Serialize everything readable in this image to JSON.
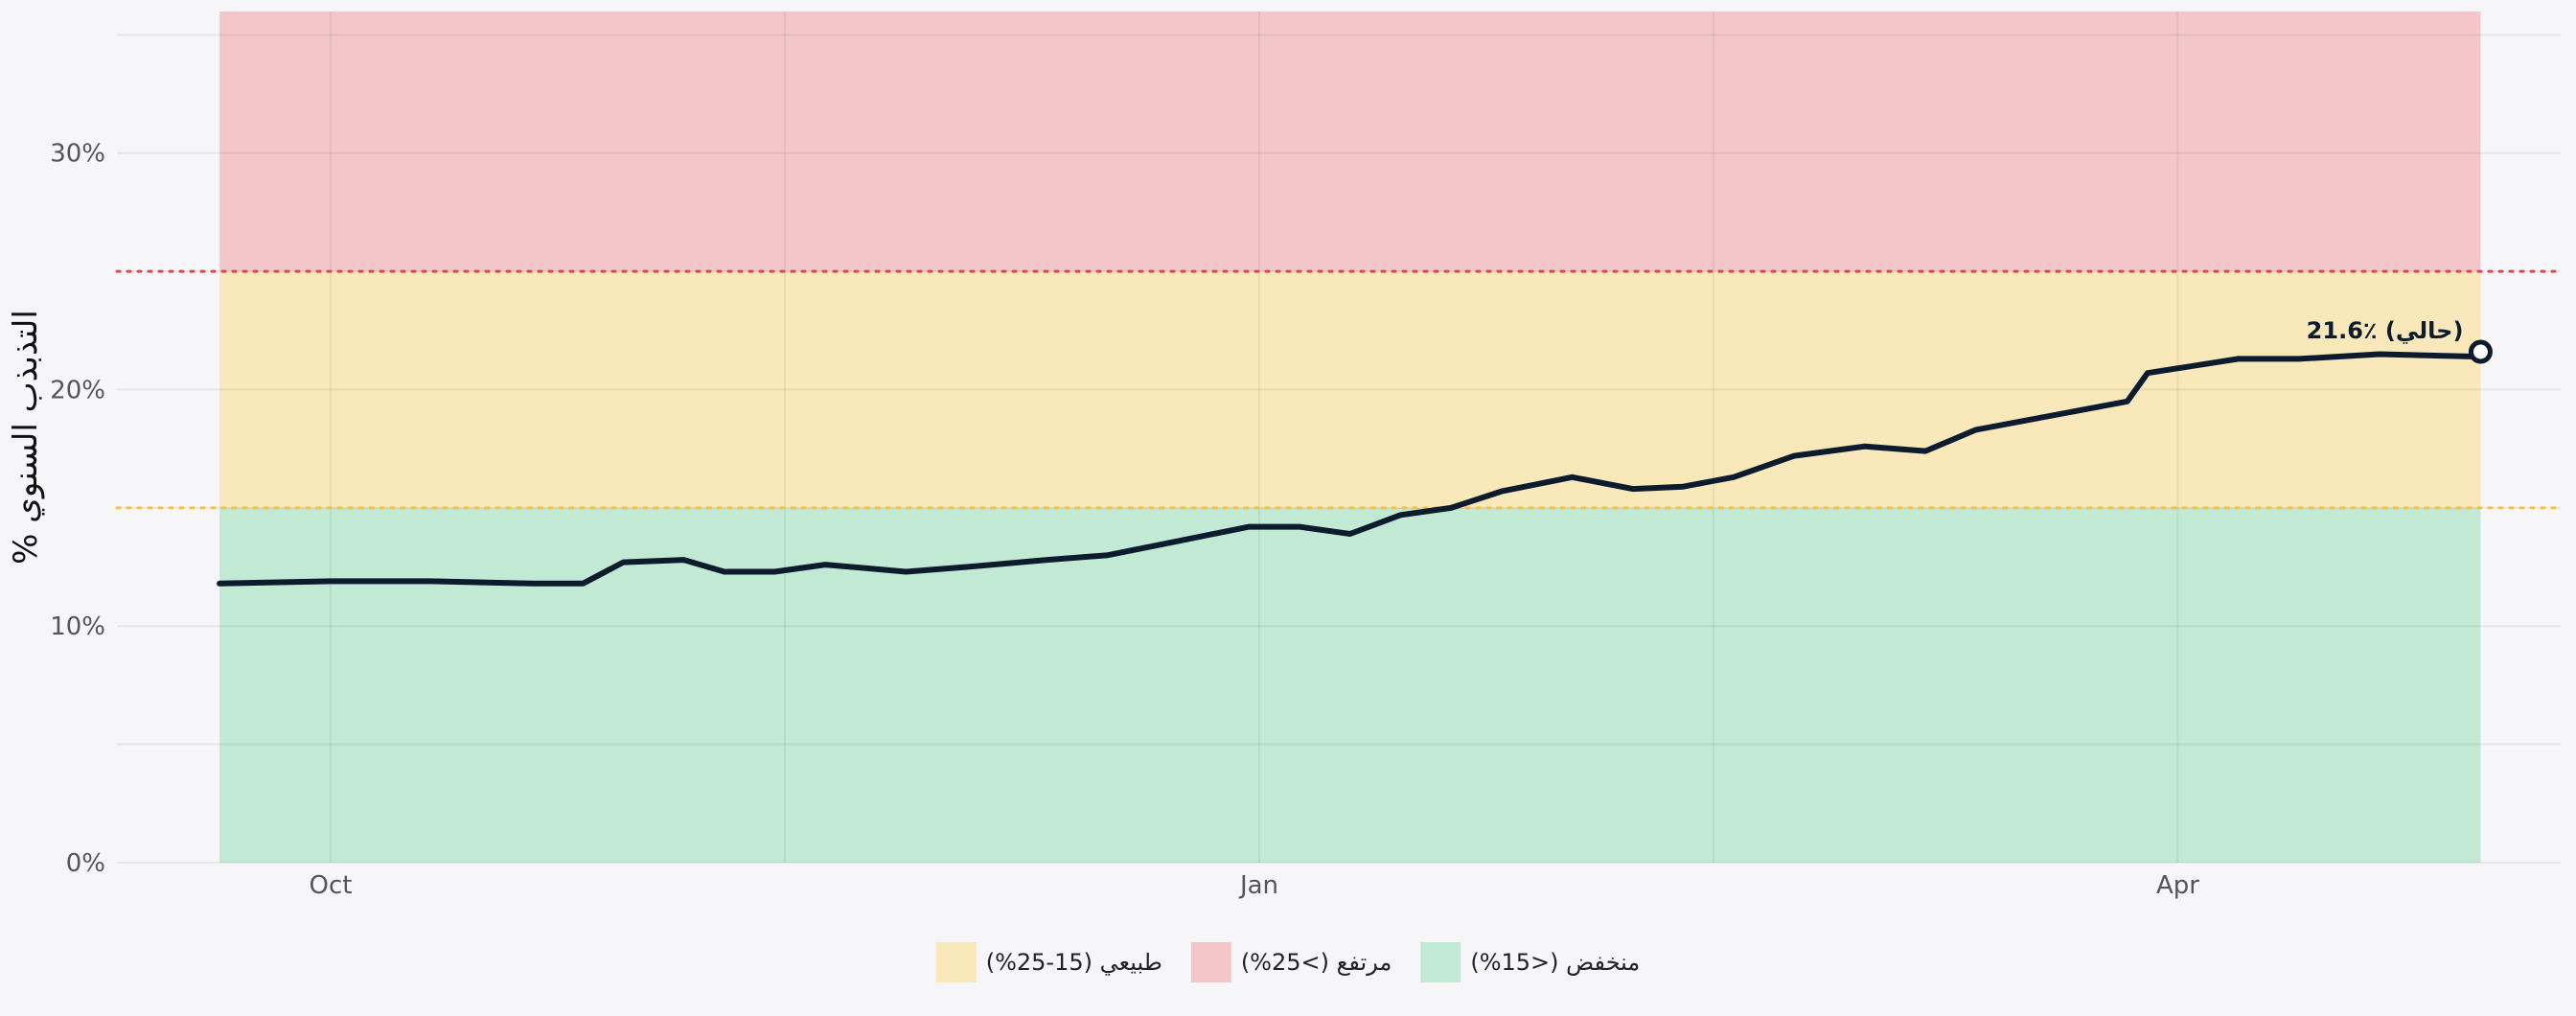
{
  "chart_data": {
    "type": "line",
    "title": "",
    "xlabel": "",
    "ylabel": "التذبذب السنوي %",
    "y_tick_labels": [
      "0%",
      "10%",
      "20%",
      "30%"
    ],
    "y_ticks": [
      0,
      10,
      20,
      30
    ],
    "ylim": [
      0,
      35.5
    ],
    "x_tick_labels": [
      "Oct",
      "Jan",
      "Apr"
    ],
    "x_ticks": [
      "2023-10-01",
      "2024-01-01",
      "2024-04-01"
    ],
    "x_range": [
      "2023-08-15",
      "2024-06-01"
    ],
    "grid": true,
    "zones": [
      {
        "name": "منخفض (<15%)",
        "label": "منخفض (<15%)",
        "from": 0,
        "to": 15,
        "color": "#c2e9d4"
      },
      {
        "name": "طبيعي (15-25%)",
        "label": "طبيعي (15-25%)",
        "from": 15,
        "to": 25,
        "color": "#f8e8ba"
      },
      {
        "name": "مرتفع (>25%)",
        "label": "مرتفع (>25%)",
        "from": 25,
        "to": 37,
        "color": "#f3c7c9"
      }
    ],
    "zone_x_range": [
      "2023-09-20",
      "2024-05-01"
    ],
    "thresholds": [
      {
        "value": 15,
        "color": "#f5c242",
        "style": "dotted"
      },
      {
        "value": 25,
        "color": "#e0454c",
        "style": "dotted"
      }
    ],
    "series": [
      {
        "color": "#0d1b2e",
        "x": [
          "2023-09-20",
          "2023-10-01",
          "2023-10-11",
          "2023-10-21",
          "2023-10-26",
          "2023-10-30",
          "2023-11-05",
          "2023-11-09",
          "2023-11-14",
          "2023-11-19",
          "2023-11-27",
          "2023-12-03",
          "2023-12-11",
          "2023-12-17",
          "2023-12-24",
          "2023-12-31",
          "2024-01-05",
          "2024-01-10",
          "2024-01-15",
          "2024-01-20",
          "2024-01-25",
          "2024-02-01",
          "2024-02-07",
          "2024-02-12",
          "2024-02-17",
          "2024-02-23",
          "2024-03-01",
          "2024-03-07",
          "2024-03-12",
          "2024-03-27",
          "2024-03-29",
          "2024-04-04",
          "2024-04-07",
          "2024-04-13",
          "2024-04-21",
          "2024-04-30",
          "2024-05-01"
        ],
        "values": [
          11.8,
          11.9,
          11.9,
          11.8,
          11.8,
          12.7,
          12.8,
          12.3,
          12.3,
          12.6,
          12.3,
          12.5,
          12.8,
          13.0,
          13.6,
          14.2,
          14.2,
          13.9,
          14.7,
          15.0,
          15.7,
          16.3,
          15.8,
          15.9,
          16.3,
          17.2,
          17.6,
          17.4,
          18.3,
          19.5,
          20.7,
          21.1,
          21.3,
          21.3,
          21.5,
          21.4,
          21.6
        ]
      }
    ],
    "annotation": {
      "text": "21.6٪ (حالي)",
      "x": "2024-05-01",
      "y": 21.6
    },
    "legend": {
      "placement": "bottom-center",
      "items": [
        {
          "label": "طبيعي (15-25%)",
          "color": "#f8e8ba"
        },
        {
          "label": "مرتفع (>25%)",
          "color": "#f3c7c9"
        },
        {
          "label": "منخفض (<15%)",
          "color": "#c2e9d4"
        }
      ]
    }
  }
}
